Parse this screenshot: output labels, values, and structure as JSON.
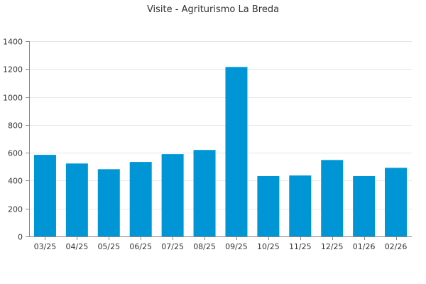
{
  "chart_data": {
    "type": "bar",
    "title": "Visite - Agriturismo La Breda",
    "xlabel": "",
    "ylabel": "",
    "categories": [
      "03/25",
      "04/25",
      "05/25",
      "06/25",
      "07/25",
      "08/25",
      "09/25",
      "10/25",
      "11/25",
      "12/25",
      "01/26",
      "02/26"
    ],
    "values": [
      585,
      523,
      482,
      534,
      590,
      620,
      1215,
      433,
      437,
      548,
      433,
      492
    ],
    "ylim": [
      0,
      1400
    ],
    "yticks": [
      0,
      200,
      400,
      600,
      800,
      1000,
      1200,
      1400
    ],
    "grid": true,
    "legend": "none",
    "bar_color": "#0096d6"
  }
}
